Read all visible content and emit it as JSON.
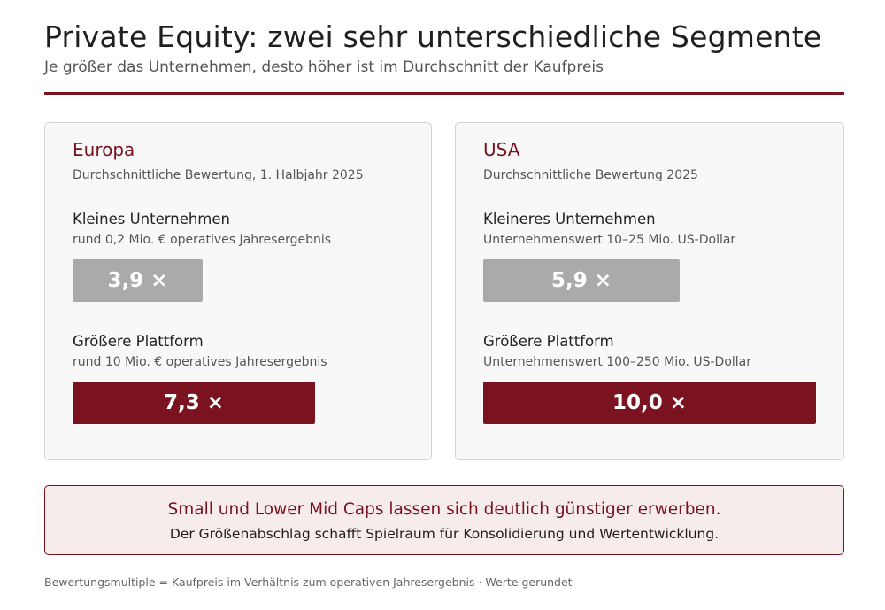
{
  "header": {
    "title": "Private Equity: zwei sehr unterschiedliche Segmente",
    "subtitle": "Je größer das Unternehmen, desto höher ist im Durchschnitt der Kaufpreis"
  },
  "colors": {
    "accent": "#7a1220",
    "small_bar": "#aaaaaa",
    "note_bg": "#f7ecec"
  },
  "chart_data": {
    "type": "bar",
    "orientation": "horizontal",
    "panels": [
      {
        "title": "Europa",
        "subtitle": "Durchschnittliche Bewertung, 1. Halbjahr 2025",
        "categories": [
          {
            "label": "Kleines Unternehmen",
            "description": "rund 0,2 Mio. € operatives Jahresergebnis",
            "value": 3.9,
            "value_label": "3,9 ×"
          },
          {
            "label": "Größere Plattform",
            "description": "rund 10 Mio. € operatives Jahresergebnis",
            "value": 7.3,
            "value_label": "7,3 ×"
          }
        ]
      },
      {
        "title": "USA",
        "subtitle": "Durchschnittliche Bewertung 2025",
        "categories": [
          {
            "label": "Kleineres Unternehmen",
            "description": "Unternehmenswert 10–25 Mio. US-Dollar",
            "value": 5.9,
            "value_label": "5,9 ×"
          },
          {
            "label": "Größere Plattform",
            "description": "Unternehmenswert 100–250 Mio. US-Dollar",
            "value": 10.0,
            "value_label": "10,0 ×"
          }
        ]
      }
    ],
    "xlim": [
      0,
      10.0
    ],
    "grid": false,
    "legend": "none"
  },
  "note": {
    "headline": "Small und Lower Mid Caps lassen sich deutlich günstiger erwerben.",
    "text": "Der Größenabschlag schafft Spielraum für Konsolidierung und Wertentwicklung."
  },
  "footnote": "Bewertungsmultiple = Kaufpreis im Verhältnis zum operativen Jahresergebnis · Werte gerundet"
}
